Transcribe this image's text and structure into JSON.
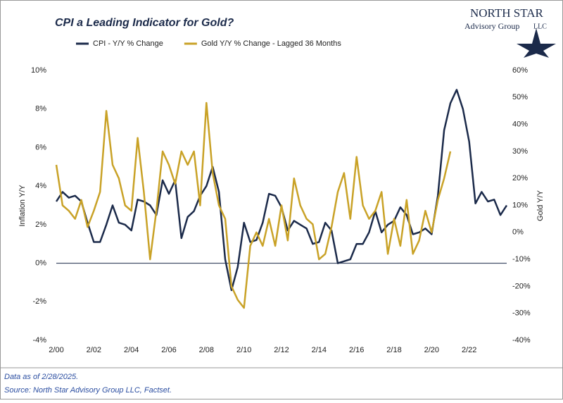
{
  "chart_data": {
    "type": "line",
    "title": "CPI a Leading Indicator for Gold?",
    "logo": {
      "name": "North Star",
      "sub": "Advisory Group",
      "suffix": "LLC"
    },
    "notes": [
      "Data as of 2/28/2025.",
      "Source: North Star Advisory Group LLC, Factset."
    ],
    "y_label": "Inflation Y/Y",
    "y2_label": "Gold Y/Y",
    "x": [
      "2/00",
      "6/00",
      "10/00",
      "2/01",
      "6/01",
      "10/01",
      "2/02",
      "6/02",
      "10/02",
      "2/03",
      "6/03",
      "10/03",
      "2/04",
      "6/04",
      "10/04",
      "2/05",
      "6/05",
      "10/05",
      "2/06",
      "6/06",
      "10/06",
      "2/07",
      "6/07",
      "10/07",
      "2/08",
      "6/08",
      "10/08",
      "2/09",
      "6/09",
      "10/09",
      "2/10",
      "6/10",
      "10/10",
      "2/11",
      "6/11",
      "10/11",
      "2/12",
      "6/12",
      "10/12",
      "2/13",
      "6/13",
      "10/13",
      "2/14",
      "6/14",
      "10/14",
      "2/15",
      "6/15",
      "10/15",
      "2/16",
      "6/16",
      "10/16",
      "2/17",
      "6/17",
      "10/17",
      "2/18",
      "6/18",
      "10/18",
      "2/19",
      "6/19",
      "10/19",
      "2/20",
      "6/20",
      "10/20",
      "2/21",
      "6/21",
      "10/21",
      "2/22",
      "6/22",
      "10/22",
      "2/23",
      "6/23",
      "10/23",
      "2/24"
    ],
    "xticks": [
      "2/00",
      "2/02",
      "2/04",
      "2/06",
      "2/08",
      "2/10",
      "2/12",
      "2/14",
      "2/16",
      "2/18",
      "2/20",
      "2/22"
    ],
    "ylim": [
      -4,
      10
    ],
    "yticks": [
      {
        "value": -4,
        "label": "-4%"
      },
      {
        "value": -2,
        "label": "-2%"
      },
      {
        "value": 0,
        "label": "0%"
      },
      {
        "value": 2,
        "label": "2%"
      },
      {
        "value": 4,
        "label": "4%"
      },
      {
        "value": 6,
        "label": "6%"
      },
      {
        "value": 8,
        "label": "8%"
      },
      {
        "value": 10,
        "label": "10%"
      }
    ],
    "y2lim": [
      -40,
      60
    ],
    "y2ticks": [
      {
        "value": -40,
        "label": "-40%"
      },
      {
        "value": -30,
        "label": "-30%"
      },
      {
        "value": -20,
        "label": "-20%"
      },
      {
        "value": -10,
        "label": "-10%"
      },
      {
        "value": 0,
        "label": "0%"
      },
      {
        "value": 10,
        "label": "10%"
      },
      {
        "value": 20,
        "label": "20%"
      },
      {
        "value": 30,
        "label": "30%"
      },
      {
        "value": 40,
        "label": "40%"
      },
      {
        "value": 50,
        "label": "50%"
      },
      {
        "value": 60,
        "label": "60%"
      }
    ],
    "zero_line": 0,
    "legend": "top",
    "series": [
      {
        "name": "CPI - Y/Y % Change",
        "color": "#1b2a4a",
        "axis": "y",
        "values": [
          3.2,
          3.7,
          3.4,
          3.5,
          3.2,
          2.1,
          1.1,
          1.1,
          2.0,
          3.0,
          2.1,
          2.0,
          1.7,
          3.3,
          3.2,
          3.0,
          2.5,
          4.3,
          3.6,
          4.3,
          1.3,
          2.4,
          2.7,
          3.5,
          4.0,
          5.0,
          3.7,
          0.2,
          -1.4,
          -0.2,
          2.1,
          1.1,
          1.2,
          2.1,
          3.6,
          3.5,
          2.9,
          1.7,
          2.2,
          2.0,
          1.8,
          1.0,
          1.1,
          2.1,
          1.7,
          0.0,
          0.1,
          0.2,
          1.0,
          1.0,
          1.6,
          2.7,
          1.6,
          2.0,
          2.2,
          2.9,
          2.5,
          1.5,
          1.6,
          1.8,
          1.5,
          3.5,
          6.9,
          8.3,
          9.0,
          8.0,
          6.3,
          3.1,
          3.7,
          3.2,
          3.3,
          2.5,
          3.0
        ]
      },
      {
        "name": "Gold Y/Y % Change - Lagged 36 Months",
        "color": "#c9a227",
        "axis": "y2",
        "values": [
          25,
          10,
          8,
          5,
          12,
          2,
          8,
          15,
          45,
          25,
          20,
          10,
          8,
          35,
          15,
          -10,
          8,
          30,
          25,
          18,
          30,
          25,
          30,
          10,
          48,
          22,
          10,
          5,
          -20,
          -25,
          -28,
          -5,
          0,
          -5,
          5,
          -5,
          10,
          -3,
          20,
          10,
          5,
          3,
          -10,
          -8,
          2,
          15,
          22,
          5,
          28,
          10,
          5,
          8,
          15,
          -8,
          5,
          -5,
          12,
          -8,
          -3,
          8,
          0,
          12,
          20,
          30,
          null,
          null,
          null,
          null,
          null,
          null,
          null,
          null,
          null
        ]
      }
    ]
  }
}
